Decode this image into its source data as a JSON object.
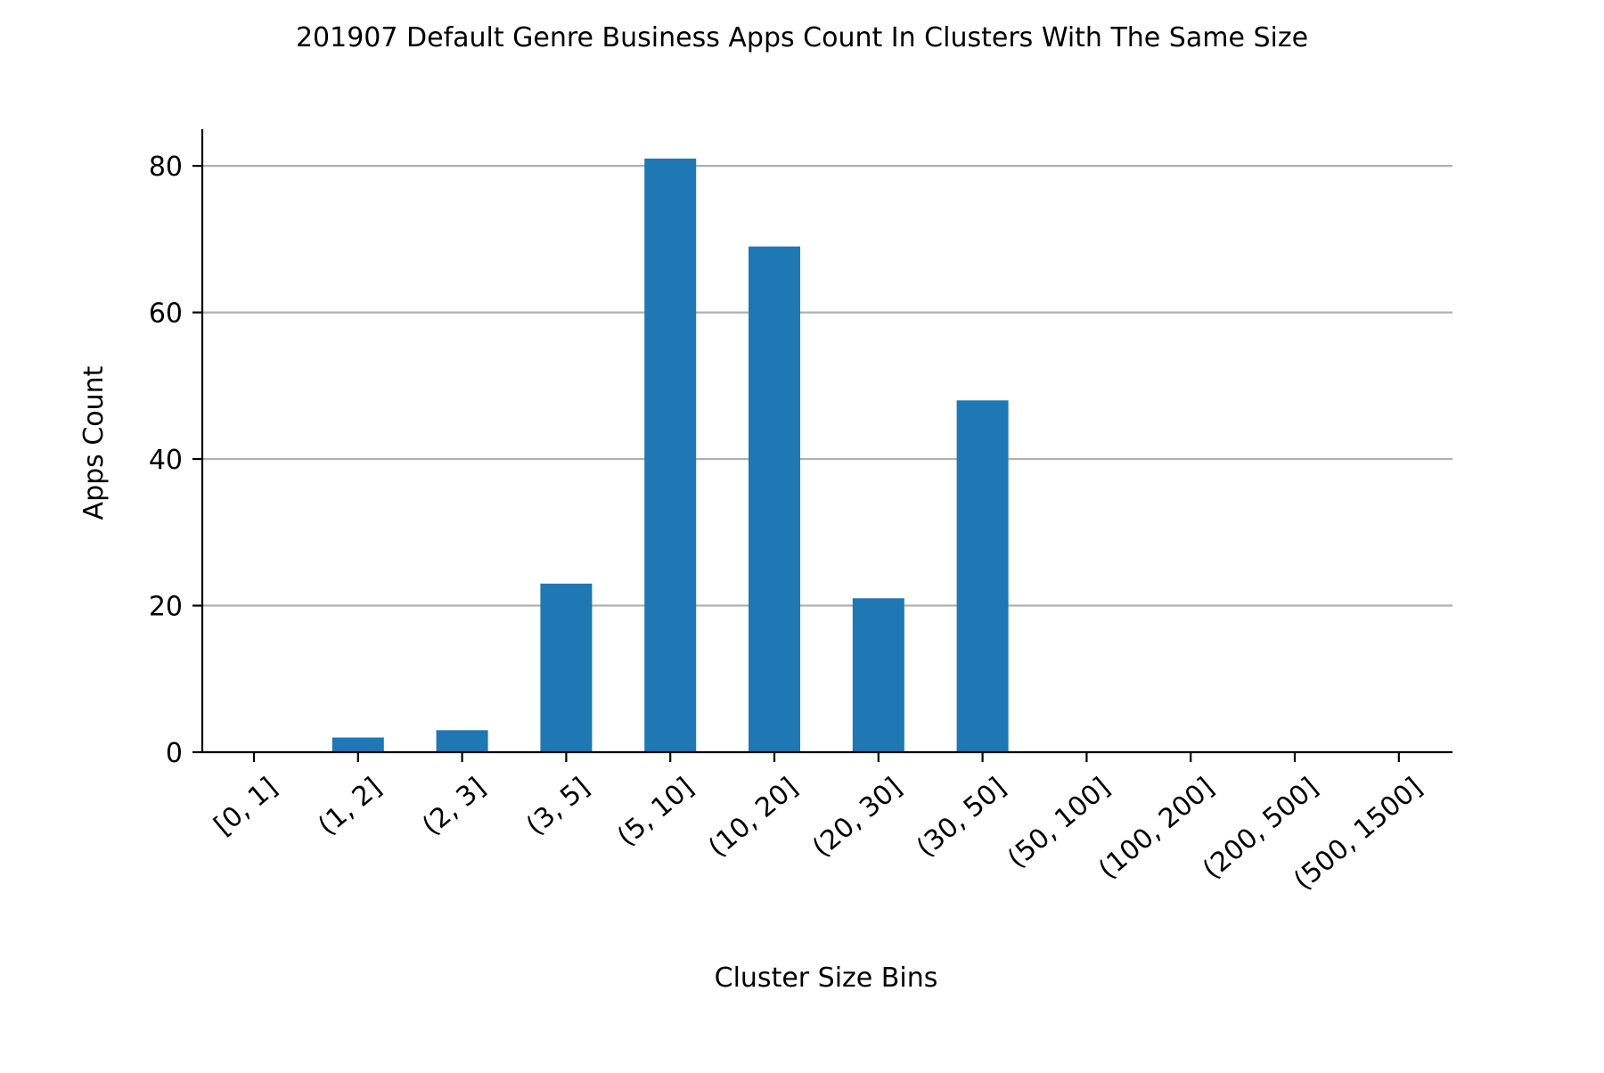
{
  "chart_data": {
    "type": "bar",
    "title": "201907 Default Genre Business Apps Count In Clusters With The Same Size",
    "xlabel": "Cluster Size Bins",
    "ylabel": "Apps Count",
    "categories": [
      "[0, 1]",
      "(1, 2]",
      "(2, 3]",
      "(3, 5]",
      "(5, 10]",
      "(10, 20]",
      "(20, 30]",
      "(30, 50]",
      "(50, 100]",
      "(100, 200]",
      "(200, 500]",
      "(500, 1500]"
    ],
    "values": [
      0,
      2,
      3,
      23,
      81,
      69,
      21,
      48,
      0,
      0,
      0,
      0
    ],
    "ylim": [
      0,
      85
    ],
    "yticks": [
      0,
      20,
      40,
      60,
      80
    ],
    "grid": "horizontal",
    "legend": "none",
    "colors": {
      "bar": "#1f77b4",
      "grid": "#b0b0b0",
      "axis": "#000000"
    }
  }
}
